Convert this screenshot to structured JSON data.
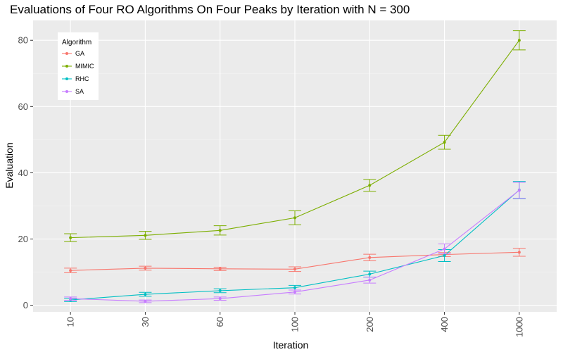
{
  "chart_data": {
    "type": "line",
    "title": "Evaluations of Four RO Algorithms On Four Peaks by Iteration with N = 300",
    "xlabel": "Iteration",
    "ylabel": "Evaluation",
    "categories": [
      "10",
      "30",
      "60",
      "100",
      "200",
      "400",
      "1000"
    ],
    "yticks": [
      "0",
      "20",
      "40",
      "60",
      "80"
    ],
    "ylim": [
      -2,
      86
    ],
    "grid": true,
    "legend": {
      "title": "Algorithm",
      "position": "top-left"
    },
    "series": [
      {
        "name": "GA",
        "color": "#F8766D",
        "values": [
          10.5,
          11.2,
          11.0,
          10.9,
          14.4,
          15.3,
          16.0
        ],
        "error": [
          0.7,
          0.6,
          0.5,
          0.7,
          1.0,
          0.6,
          1.2
        ]
      },
      {
        "name": "MIMIC",
        "color": "#7CAE00",
        "values": [
          20.4,
          21.1,
          22.6,
          26.4,
          36.2,
          49.2,
          80.0
        ],
        "error": [
          1.2,
          1.2,
          1.4,
          2.1,
          1.8,
          2.1,
          2.9
        ]
      },
      {
        "name": "RHC",
        "color": "#00BFC4",
        "values": [
          1.6,
          3.3,
          4.4,
          5.3,
          9.4,
          15.0,
          34.8
        ],
        "error": [
          0.5,
          0.6,
          0.6,
          0.7,
          0.9,
          1.8,
          2.6
        ]
      },
      {
        "name": "SA",
        "color": "#C77CFF",
        "values": [
          2.0,
          1.2,
          2.0,
          4.0,
          7.6,
          17.0,
          34.7
        ],
        "error": [
          0.5,
          0.4,
          0.5,
          0.6,
          0.9,
          1.5,
          2.4
        ]
      }
    ]
  }
}
